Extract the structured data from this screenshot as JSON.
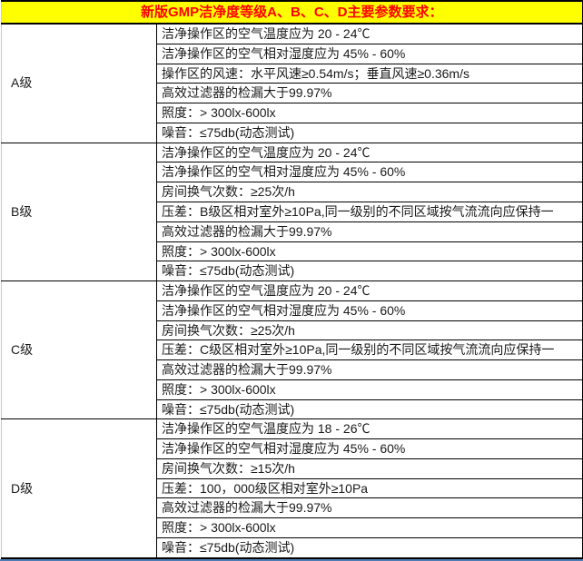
{
  "header": {
    "title": "新版GMP洁净度等级A、B、C、D主要参数要求："
  },
  "colors": {
    "header_background": "#FFFF00",
    "header_text": "#FF0000",
    "table_border": "#000000",
    "bottom_accent_line": "#4F7CB5",
    "body_text": "#1A1A1A"
  },
  "grades": [
    {
      "label": "A级",
      "rows": [
        "洁净操作区的空气温度应为 20 - 24℃",
        "洁净操作区的空气相对湿度应为 45% - 60%",
        "操作区的风速：水平风速≥0.54m/s；垂直风速≥0.36m/s",
        "高效过滤器的检漏大于99.97%",
        "照度：> 300lx-600lx",
        "噪音：≤75db(动态测试)"
      ]
    },
    {
      "label": "B级",
      "rows": [
        "洁净操作区的空气温度应为 20 - 24℃",
        "洁净操作区的空气相对湿度应为 45% - 60%",
        "房间换气次数：≥25次/h",
        "压差：B级区相对室外≥10Pa,同一级别的不同区域按气流流向应保持一",
        "高效过滤器的检漏大于99.97%",
        "照度：> 300lx-600lx",
        "噪音：≤75db(动态测试)"
      ]
    },
    {
      "label": "C级",
      "rows": [
        "洁净操作区的空气温度应为 20 - 24℃",
        "洁净操作区的空气相对湿度应为 45% - 60%",
        "房间换气次数：≥25次/h",
        "压差：C级区相对室外≥10Pa,同一级别的不同区域按气流流向应保持一",
        "高效过滤器的检漏大于99.97%",
        "照度：> 300lx-600lx",
        "噪音：≤75db(动态测试)"
      ]
    },
    {
      "label": "D级",
      "rows": [
        "洁净操作区的空气温度应为 18 - 26℃",
        "洁净操作区的空气相对湿度应为 45% - 60%",
        "房间换气次数：≥15次/h",
        "压差：100，000级区相对室外≥10Pa",
        "高效过滤器的检漏大于99.97%",
        "照度：> 300lx-600lx",
        "噪音：≤75db(动态测试)"
      ]
    }
  ]
}
